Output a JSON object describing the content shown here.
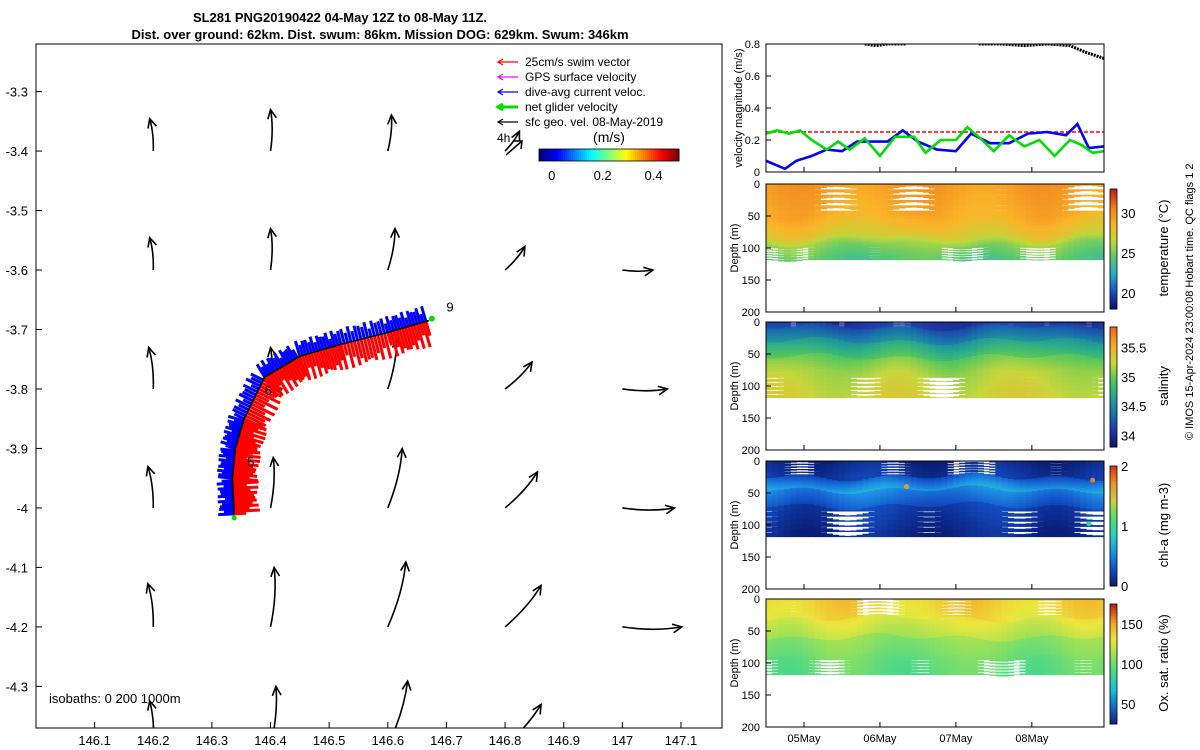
{
  "header": {
    "line1": "SL281 PNG20190422 04-May 12Z to 08-May 11Z.",
    "line2": "Dist. over ground: 62km. Dist. swum: 86km. Mission DOG: 629km. Swum: 346km"
  },
  "footer": "© IMOS 15-Apr-2024 23:00:08 Hobart time. QC flags 1  2",
  "colors": {
    "swim": "#ff0000",
    "gps": "#ff00ff",
    "current": "#0000ff",
    "net": "#00e000",
    "geo": "#000000"
  },
  "chart_data": [
    {
      "id": "map",
      "type": "scatter",
      "title": "Glider track with surface geostrophic velocity",
      "xlabel": "",
      "ylabel": "",
      "xlim": [
        146.0,
        147.17
      ],
      "ylim": [
        -4.37,
        -3.22
      ],
      "xticks": [
        146.1,
        146.2,
        146.3,
        146.4,
        146.5,
        146.6,
        146.7,
        146.8,
        146.9,
        147,
        147.1
      ],
      "yticks": [
        -3.3,
        -3.4,
        -3.5,
        -3.6,
        -3.7,
        -3.8,
        -3.9,
        -4,
        -4.1,
        -4.2,
        -4.3
      ],
      "legend": [
        {
          "label": "25cm/s swim vector",
          "color": "#ff0000"
        },
        {
          "label": "GPS surface velocity",
          "color": "#ff00ff"
        },
        {
          "label": "dive-avg current veloc.",
          "color": "#0000ff"
        },
        {
          "label": "net glider velocity",
          "color": "#00e000"
        },
        {
          "label": "sfc geo. vel. 08-May-2019",
          "color": "#000000"
        }
      ],
      "scale_label": "4h",
      "colorbar": {
        "label": "(m/s)",
        "ticks": [
          0,
          0.2,
          0.4
        ],
        "range": [
          -0.05,
          0.5
        ]
      },
      "isobaths_label": "isobaths: 0   200  1000m",
      "track": [
        [
          146.338,
          -4.01
        ],
        [
          146.335,
          -3.95
        ],
        [
          146.34,
          -3.9
        ],
        [
          146.355,
          -3.85
        ],
        [
          146.39,
          -3.78
        ],
        [
          146.45,
          -3.745
        ],
        [
          146.52,
          -3.725
        ],
        [
          146.6,
          -3.705
        ],
        [
          146.67,
          -3.685
        ]
      ],
      "day_labels": [
        {
          "text": "5",
          "x": 146.36,
          "y": -3.93
        },
        {
          "text": "6",
          "x": 146.39,
          "y": -3.81
        },
        {
          "text": "9",
          "x": 146.7,
          "y": -3.67
        }
      ],
      "current_grid": {
        "x": [
          146.2,
          146.4,
          146.6,
          146.8,
          147.0
        ],
        "y": [
          -3.4,
          -3.6,
          -3.8,
          -4.0,
          -4.2
        ],
        "u": [
          [
            -0.04,
            0.0,
            0.04,
            0.16,
            null
          ],
          [
            -0.04,
            0.0,
            0.08,
            0.22,
            0.34
          ],
          [
            -0.05,
            0.0,
            0.1,
            0.3,
            0.5
          ],
          [
            -0.06,
            0.03,
            0.16,
            0.36,
            0.58
          ],
          [
            -0.06,
            0.04,
            0.2,
            0.4,
            0.66
          ],
          [
            -0.04,
            0.06,
            0.22,
            0.4,
            null
          ]
        ],
        "v": [
          [
            0.36,
            0.46,
            0.4,
            0.22,
            null
          ],
          [
            0.36,
            0.46,
            0.46,
            0.26,
            0.0
          ],
          [
            0.46,
            0.46,
            0.56,
            0.3,
            0.0
          ],
          [
            0.46,
            0.56,
            0.66,
            0.4,
            0.0
          ],
          [
            0.48,
            0.66,
            0.72,
            0.46,
            0.0
          ],
          [
            0.5,
            0.66,
            0.72,
            0.46,
            null
          ]
        ],
        "rows_y": [
          -3.4,
          -3.6,
          -3.8,
          -4.0,
          -4.2,
          -4.4
        ]
      }
    },
    {
      "id": "velocity",
      "type": "line",
      "ylabel": "velocity magnitude (m/s)",
      "ylim": [
        0,
        0.8
      ],
      "yticks": [
        0,
        0.2,
        0.4,
        0.6,
        0.8
      ],
      "xlim": [
        4.5,
        8.95
      ],
      "series": [
        {
          "name": "swim reference",
          "color": "#ff0000",
          "x": [
            4.5,
            8.95
          ],
          "values": [
            0.25,
            0.25
          ]
        },
        {
          "name": "GPS surface velocity (upper)",
          "color": "#000000",
          "x": [
            5.8,
            5.95,
            6.1,
            6.35
          ],
          "values": [
            0.8,
            0.79,
            0.8,
            0.8
          ]
        },
        {
          "name": "GPS surface velocity (right)",
          "color": "#000000",
          "x": [
            7.3,
            7.6,
            7.9,
            8.2,
            8.5,
            8.7,
            8.95
          ],
          "values": [
            0.8,
            0.8,
            0.79,
            0.8,
            0.79,
            0.75,
            0.71
          ]
        },
        {
          "name": "dive-avg current",
          "color": "#0000ff",
          "x": [
            4.5,
            4.6,
            4.75,
            4.9,
            5.1,
            5.3,
            5.5,
            5.7,
            5.9,
            6.1,
            6.3,
            6.5,
            6.75,
            7.0,
            7.2,
            7.45,
            7.7,
            7.95,
            8.2,
            8.45,
            8.6,
            8.75,
            8.95
          ],
          "values": [
            0.07,
            0.05,
            0.02,
            0.07,
            0.1,
            0.14,
            0.13,
            0.19,
            0.19,
            0.19,
            0.26,
            0.19,
            0.14,
            0.13,
            0.24,
            0.18,
            0.18,
            0.24,
            0.25,
            0.23,
            0.3,
            0.15,
            0.16
          ]
        },
        {
          "name": "net glider velocity",
          "color": "#00e000",
          "x": [
            4.5,
            4.65,
            4.8,
            4.95,
            5.1,
            5.3,
            5.45,
            5.6,
            5.8,
            6.0,
            6.2,
            6.45,
            6.6,
            6.8,
            7.0,
            7.15,
            7.3,
            7.5,
            7.7,
            7.9,
            8.1,
            8.3,
            8.5,
            8.65,
            8.8,
            8.95
          ],
          "values": [
            0.24,
            0.26,
            0.24,
            0.26,
            0.2,
            0.14,
            0.19,
            0.14,
            0.21,
            0.1,
            0.22,
            0.22,
            0.12,
            0.2,
            0.2,
            0.28,
            0.22,
            0.13,
            0.23,
            0.16,
            0.2,
            0.1,
            0.2,
            0.17,
            0.12,
            0.13
          ]
        }
      ]
    },
    {
      "id": "temperature",
      "type": "heatmap",
      "ylabel": "Depth (m)",
      "cbar_label": "temperature (°C)",
      "cbar_ticks": [
        20,
        25,
        30
      ],
      "clim": [
        18,
        33
      ],
      "ylim": [
        0,
        200
      ],
      "yticks": [
        0,
        50,
        100,
        150,
        200
      ],
      "surface_value": 29.8,
      "sections": [
        {
          "from": 0,
          "to": 50,
          "start": 29.8,
          "end": 29.0
        },
        {
          "from": 50,
          "to": 80,
          "start": 29.0,
          "end": 27.5
        },
        {
          "from": 80,
          "to": 95,
          "start": 27.5,
          "end": 25.5
        },
        {
          "from": 95,
          "to": 118,
          "start": 25.5,
          "end": 24.2
        }
      ]
    },
    {
      "id": "salinity",
      "type": "heatmap",
      "ylabel": "Depth (m)",
      "cbar_label": "salinity",
      "cbar_ticks": [
        34,
        34.5,
        35,
        35.5
      ],
      "clim": [
        33.8,
        35.85
      ],
      "ylim": [
        0,
        200
      ],
      "yticks": [
        0,
        50,
        100,
        150,
        200
      ],
      "sections": [
        {
          "from": 0,
          "to": 8,
          "start": 34.05,
          "end": 34.1
        },
        {
          "from": 8,
          "to": 30,
          "start": 34.2,
          "end": 34.5
        },
        {
          "from": 30,
          "to": 55,
          "start": 34.6,
          "end": 34.9
        },
        {
          "from": 55,
          "to": 80,
          "start": 35.0,
          "end": 35.2
        },
        {
          "from": 80,
          "to": 118,
          "start": 35.2,
          "end": 35.3
        }
      ]
    },
    {
      "id": "chla",
      "type": "heatmap",
      "ylabel": "Depth (m)",
      "cbar_label": "chl-a (mg m-3)",
      "cbar_ticks": [
        0,
        1,
        2
      ],
      "clim": [
        0,
        2
      ],
      "ylim": [
        0,
        200
      ],
      "yticks": [
        0,
        50,
        100,
        150,
        200
      ],
      "sections": [
        {
          "from": 0,
          "to": 25,
          "start": 0.05,
          "end": 0.15
        },
        {
          "from": 25,
          "to": 45,
          "start": 0.3,
          "end": 0.65
        },
        {
          "from": 45,
          "to": 70,
          "start": 0.5,
          "end": 0.3
        },
        {
          "from": 70,
          "to": 118,
          "start": 0.2,
          "end": 0.05
        }
      ],
      "hotspots": [
        {
          "day": 6.35,
          "depth": 40,
          "value": 1.7
        },
        {
          "day": 8.8,
          "depth": 30,
          "value": 1.8
        },
        {
          "day": 8.75,
          "depth": 98,
          "value": 0.9
        }
      ]
    },
    {
      "id": "oxygen",
      "type": "heatmap",
      "ylabel": "Depth (m)",
      "cbar_label": "Ox. sat. ratio (%)",
      "cbar_ticks": [
        50,
        100,
        150
      ],
      "clim": [
        25,
        175
      ],
      "ylim": [
        0,
        200
      ],
      "yticks": [
        0,
        50,
        100,
        150,
        200
      ],
      "sections": [
        {
          "from": 0,
          "to": 30,
          "start": 140,
          "end": 135
        },
        {
          "from": 30,
          "to": 60,
          "start": 130,
          "end": 118
        },
        {
          "from": 60,
          "to": 90,
          "start": 110,
          "end": 102
        },
        {
          "from": 90,
          "to": 118,
          "start": 100,
          "end": 96
        }
      ]
    }
  ],
  "time_axis": {
    "xlim": [
      4.5,
      8.95
    ],
    "ticks": [
      {
        "label": "05May",
        "day": 5
      },
      {
        "label": "06May",
        "day": 6
      },
      {
        "label": "07May",
        "day": 7
      },
      {
        "label": "08May",
        "day": 8
      }
    ]
  }
}
